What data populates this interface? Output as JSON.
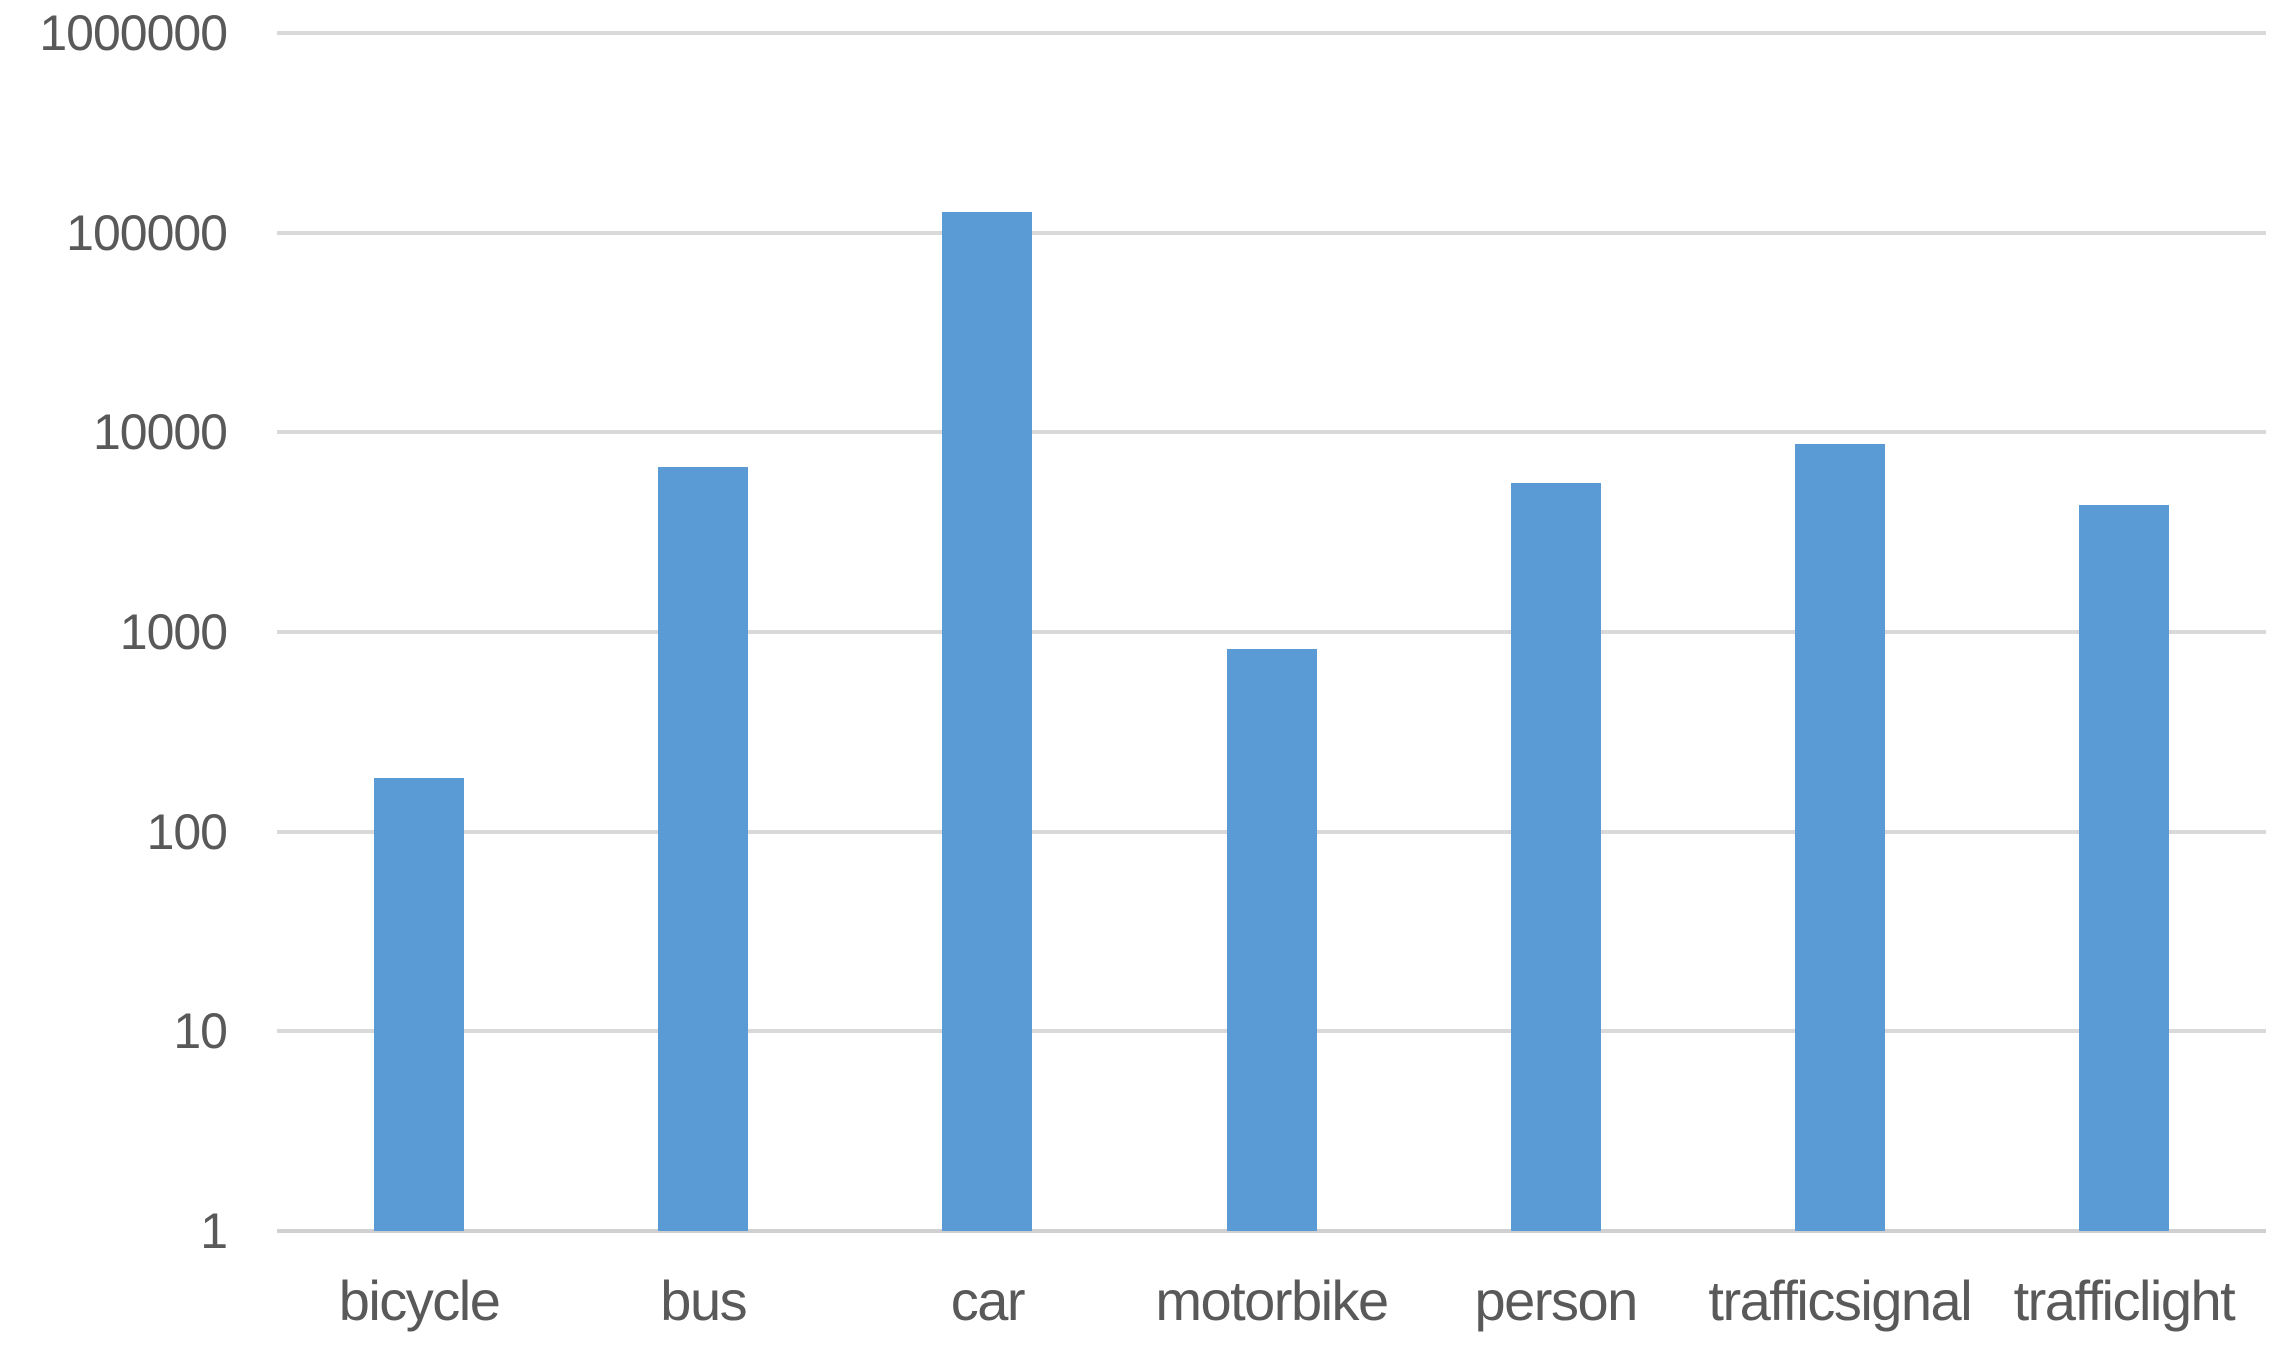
{
  "chart_data": {
    "type": "bar",
    "title": "",
    "xlabel": "",
    "ylabel": "",
    "categories": [
      "bicycle",
      "bus",
      "car",
      "motorbike",
      "person",
      "trafficsignal",
      "trafficlight"
    ],
    "values": [
      185,
      6700,
      127000,
      820,
      5600,
      8700,
      4350
    ],
    "y_scale": "log",
    "ylim": [
      1,
      1000000
    ],
    "y_tick_labels": [
      "1",
      "10",
      "100",
      "1000",
      "10000",
      "100000",
      "1000000"
    ],
    "y_tick_values": [
      1,
      10,
      100,
      1000,
      10000,
      100000,
      1000000
    ],
    "grid": true,
    "legend": false,
    "colors": {
      "bar_fill": "#5b9bd5",
      "gridline": "#d9d9d9",
      "axis_text": "#595959",
      "background": "#ffffff"
    }
  }
}
